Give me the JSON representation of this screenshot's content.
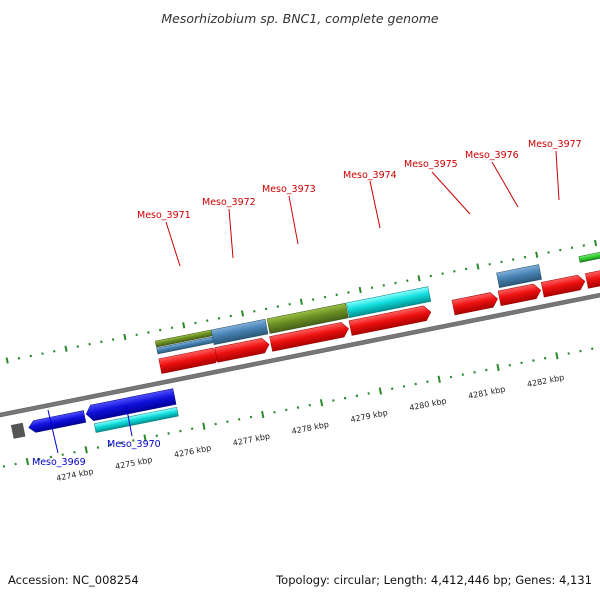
{
  "title": "Mesorhizobium sp. BNC1, complete genome",
  "footer": {
    "accession": "Accession: NC_008254",
    "summary": "Topology: circular; Length: 4,412,446 bp; Genes: 4,131"
  },
  "scale_labels": [
    "4274 kbp",
    "4275 kbp",
    "4276 kbp",
    "4277 kbp",
    "4278 kbp",
    "4279 kbp",
    "4280 kbp",
    "4281 kbp",
    "4282 kbp"
  ],
  "gene_labels": [
    {
      "text": "Meso_3969",
      "color": "#0000cc"
    },
    {
      "text": "Meso_3970",
      "color": "#0000cc"
    },
    {
      "text": "Meso_3971",
      "color": "#cc0000"
    },
    {
      "text": "Meso_3972",
      "color": "#cc0000"
    },
    {
      "text": "Meso_3973",
      "color": "#cc0000"
    },
    {
      "text": "Meso_3974",
      "color": "#cc0000"
    },
    {
      "text": "Meso_3975",
      "color": "#cc0000"
    },
    {
      "text": "Meso_3976",
      "color": "#cc0000"
    },
    {
      "text": "Meso_3977",
      "color": "#cc0000"
    }
  ],
  "colors": {
    "forward_cds": "#ee1111",
    "reverse_cds": "#1111dd",
    "cyan_feature": "#11dddd",
    "olive_feature": "#6b8e23",
    "steel_feature": "#4682b4",
    "green_feature": "#33cc33",
    "tick_green": "#2a8a2a",
    "backbone": "#777777"
  }
}
